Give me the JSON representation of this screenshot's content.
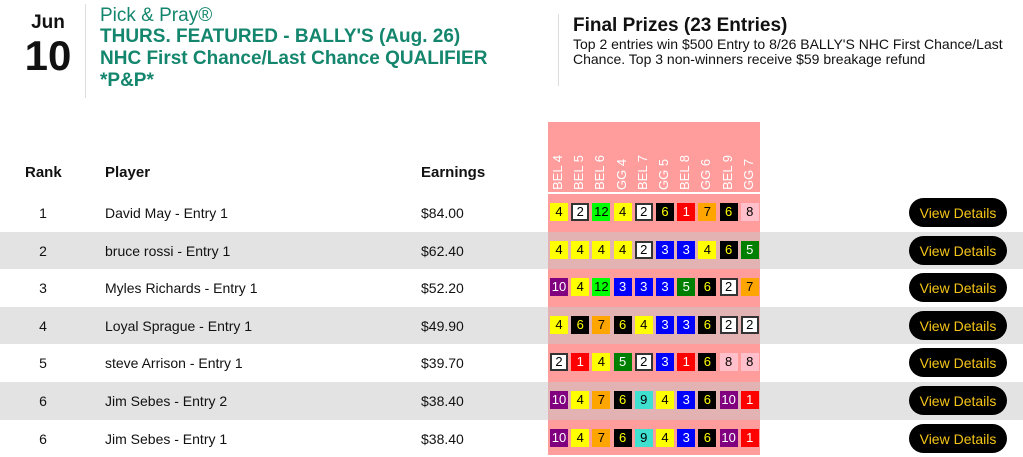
{
  "header": {
    "month": "Jun",
    "day": "10",
    "brand": "Pick & Pray®",
    "title_lines": [
      "THURS. FEATURED - BALLY'S (Aug. 26)",
      "NHC First Chance/Last Chance QUALIFIER",
      "*P&P*"
    ]
  },
  "prizes": {
    "title": "Final Prizes (23 Entries)",
    "text": "Top 2 entries win $500 Entry to 8/26 BALLY'S NHC First Chance/Last Chance. Top 3 non-winners receive $59 breakage refund"
  },
  "columns": {
    "rank": "Rank",
    "player": "Player",
    "earnings": "Earnings"
  },
  "races": [
    "BEL 4",
    "BEL 5",
    "BEL 6",
    "GG 4",
    "BEL 7",
    "GG 5",
    "BEL 8",
    "GG 6",
    "BEL 9",
    "GG 7"
  ],
  "saddle_colors": {
    "1": [
      "#ff0000",
      "#ffffff"
    ],
    "2": [
      "#ffffff",
      "#000000"
    ],
    "3": [
      "#0000ff",
      "#ffffff"
    ],
    "4": [
      "#ffff00",
      "#000000"
    ],
    "5": [
      "#008000",
      "#ffffff"
    ],
    "6": [
      "#000000",
      "#ffff00"
    ],
    "7": [
      "#ffa500",
      "#000000"
    ],
    "8": [
      "#ffc0cb",
      "#000000"
    ],
    "9": [
      "#40e0d0",
      "#000000"
    ],
    "10": [
      "#800080",
      "#ffffff"
    ],
    "12": [
      "#00ff00",
      "#000000"
    ]
  },
  "button_label": "View Details",
  "rows": [
    {
      "rank": "1",
      "player": "David May - Entry 1",
      "earnings": "$84.00",
      "picks": [
        4,
        2,
        12,
        4,
        2,
        6,
        1,
        7,
        6,
        8
      ]
    },
    {
      "rank": "2",
      "player": "bruce rossi - Entry 1",
      "earnings": "$62.40",
      "picks": [
        4,
        4,
        4,
        4,
        2,
        3,
        3,
        4,
        6,
        5
      ]
    },
    {
      "rank": "3",
      "player": "Myles Richards - Entry 1",
      "earnings": "$52.20",
      "picks": [
        10,
        4,
        12,
        3,
        3,
        3,
        5,
        6,
        2,
        7
      ]
    },
    {
      "rank": "4",
      "player": "Loyal Sprague - Entry 1",
      "earnings": "$49.90",
      "picks": [
        4,
        6,
        7,
        6,
        4,
        3,
        3,
        6,
        2,
        2
      ]
    },
    {
      "rank": "5",
      "player": "steve Arrison - Entry 1",
      "earnings": "$39.70",
      "picks": [
        2,
        1,
        4,
        5,
        2,
        3,
        1,
        6,
        8,
        8
      ]
    },
    {
      "rank": "6",
      "player": "Jim Sebes - Entry 2",
      "earnings": "$38.40",
      "picks": [
        10,
        4,
        7,
        6,
        9,
        4,
        3,
        6,
        10,
        1
      ]
    },
    {
      "rank": "6",
      "player": "Jim Sebes - Entry 1",
      "earnings": "$38.40",
      "picks": [
        10,
        4,
        7,
        6,
        9,
        4,
        3,
        6,
        10,
        1
      ]
    }
  ]
}
